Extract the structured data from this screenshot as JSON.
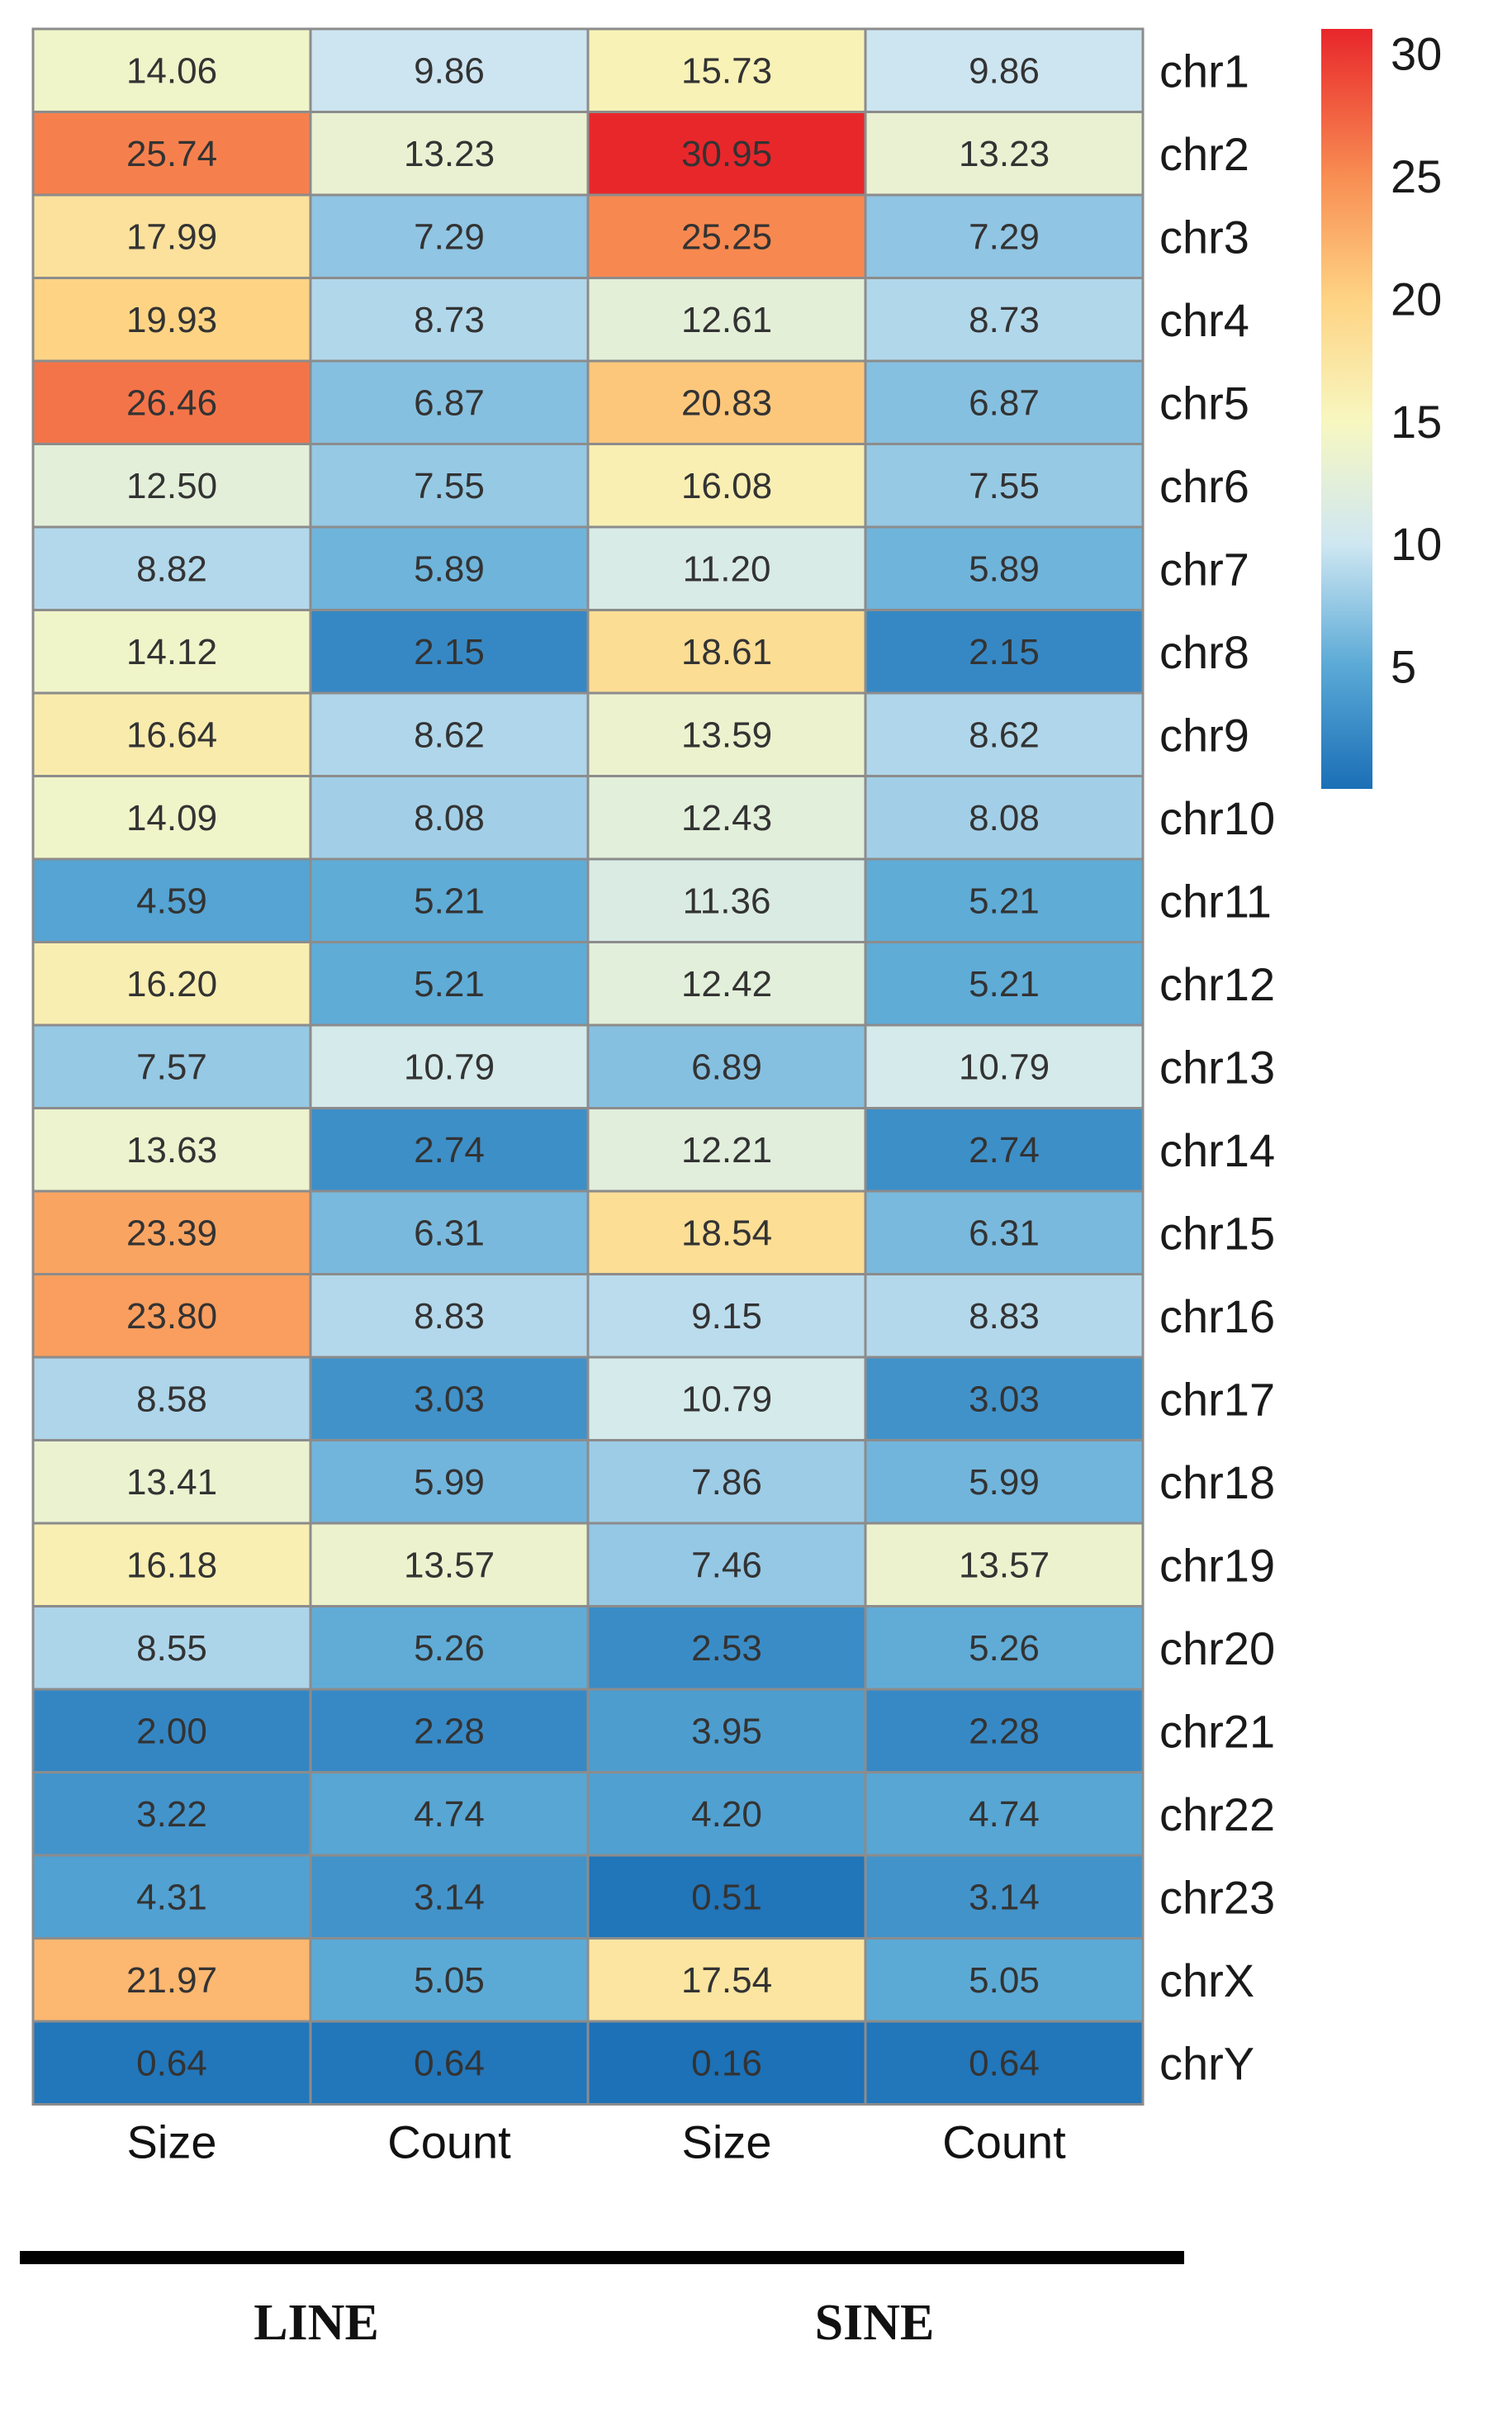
{
  "chart_data": {
    "type": "heatmap",
    "rows": [
      "chr1",
      "chr2",
      "chr3",
      "chr4",
      "chr5",
      "chr6",
      "chr7",
      "chr8",
      "chr9",
      "chr10",
      "chr11",
      "chr12",
      "chr13",
      "chr14",
      "chr15",
      "chr16",
      "chr17",
      "chr18",
      "chr19",
      "chr20",
      "chr21",
      "chr22",
      "chr23",
      "chrX",
      "chrY"
    ],
    "columns": [
      "Size",
      "Count",
      "Size",
      "Count"
    ],
    "groups": [
      {
        "label": "LINE",
        "columns": [
          0,
          1
        ]
      },
      {
        "label": "SINE",
        "columns": [
          2,
          3
        ]
      }
    ],
    "values": [
      [
        "14.06",
        "9.86",
        "15.73",
        "9.86"
      ],
      [
        "25.74",
        "13.23",
        "30.95",
        "13.23"
      ],
      [
        "17.99",
        "7.29",
        "25.25",
        "7.29"
      ],
      [
        "19.93",
        "8.73",
        "12.61",
        "8.73"
      ],
      [
        "26.46",
        "6.87",
        "20.83",
        "6.87"
      ],
      [
        "12.50",
        "7.55",
        "16.08",
        "7.55"
      ],
      [
        "8.82",
        "5.89",
        "11.20",
        "5.89"
      ],
      [
        "14.12",
        "2.15",
        "18.61",
        "2.15"
      ],
      [
        "16.64",
        "8.62",
        "13.59",
        "8.62"
      ],
      [
        "14.09",
        "8.08",
        "12.43",
        "8.08"
      ],
      [
        "4.59",
        "5.21",
        "11.36",
        "5.21"
      ],
      [
        "16.20",
        "5.21",
        "12.42",
        "5.21"
      ],
      [
        "7.57",
        "10.79",
        "6.89",
        "10.79"
      ],
      [
        "13.63",
        "2.74",
        "12.21",
        "2.74"
      ],
      [
        "23.39",
        "6.31",
        "18.54",
        "6.31"
      ],
      [
        "23.80",
        "8.83",
        "9.15",
        "8.83"
      ],
      [
        "8.58",
        "3.03",
        "10.79",
        "3.03"
      ],
      [
        "13.41",
        "5.99",
        "7.86",
        "5.99"
      ],
      [
        "16.18",
        "13.57",
        "7.46",
        "13.57"
      ],
      [
        "8.55",
        "5.26",
        "2.53",
        "5.26"
      ],
      [
        "2.00",
        "2.28",
        "3.95",
        "2.28"
      ],
      [
        "3.22",
        "4.74",
        "4.20",
        "4.74"
      ],
      [
        "4.31",
        "3.14",
        "0.51",
        "3.14"
      ],
      [
        "21.97",
        "5.05",
        "17.54",
        "5.05"
      ],
      [
        "0.64",
        "0.64",
        "0.16",
        "0.64"
      ]
    ],
    "color_scale": {
      "min": 0,
      "max": 31,
      "ticks": [
        "5",
        "10",
        "15",
        "20",
        "25",
        "30"
      ],
      "stops": [
        {
          "value": 0,
          "color": "#1a6fb6"
        },
        {
          "value": 5,
          "color": "#5aa9d6"
        },
        {
          "value": 10,
          "color": "#cfe7f2"
        },
        {
          "value": 15,
          "color": "#f7f7c0"
        },
        {
          "value": 20,
          "color": "#fed383"
        },
        {
          "value": 25,
          "color": "#f88d52"
        },
        {
          "value": 31,
          "color": "#e8262b"
        }
      ]
    },
    "legend_position": "top-right"
  }
}
